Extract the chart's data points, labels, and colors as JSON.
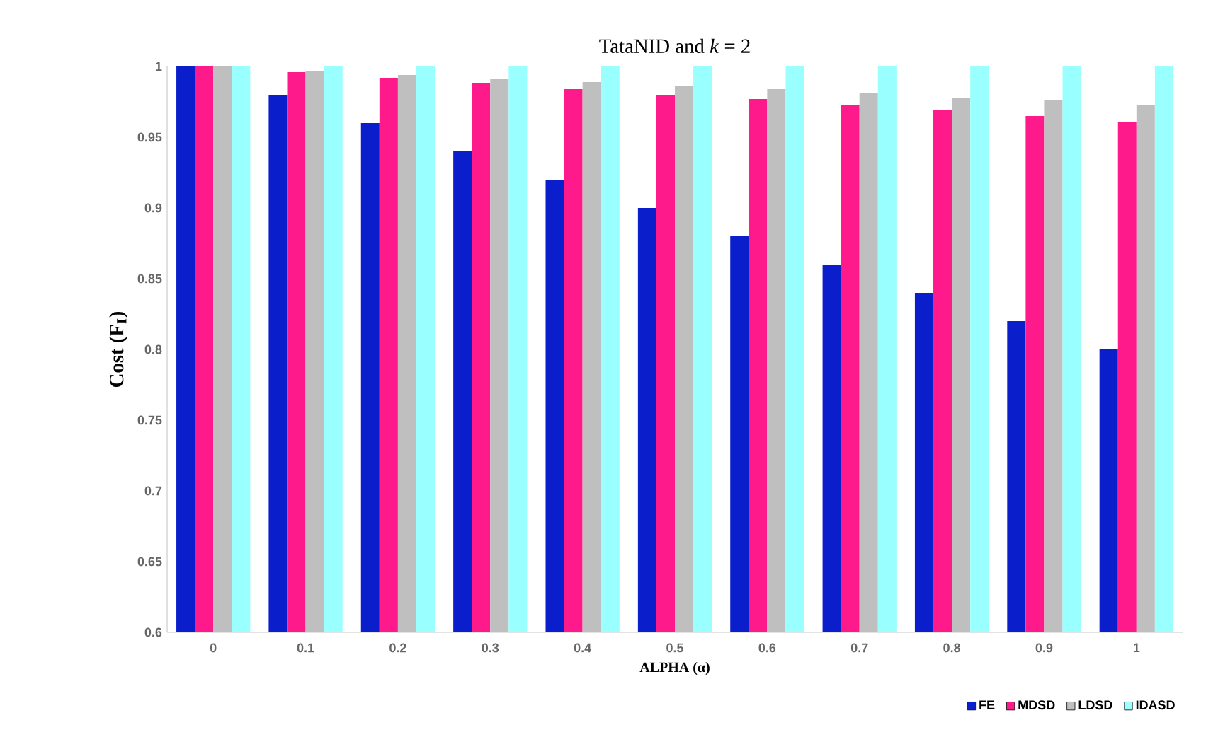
{
  "chart_data": {
    "type": "bar",
    "title": "TataNID and *k* = 2",
    "xlabel": "ALPHA (α)",
    "ylabel": "Cost (F$_{I}$)",
    "categories": [
      "0",
      "0.1",
      "0.2",
      "0.3",
      "0.4",
      "0.5",
      "0.6",
      "0.7",
      "0.8",
      "0.9",
      "1"
    ],
    "series": [
      {
        "name": "FE",
        "color": "#0a1ecc",
        "values": [
          1,
          0.98,
          0.96,
          0.94,
          0.92,
          0.9,
          0.88,
          0.86,
          0.84,
          0.82,
          0.8
        ]
      },
      {
        "name": "MDSD",
        "color": "#ff1a8c",
        "values": [
          1,
          0.996,
          0.992,
          0.988,
          0.984,
          0.98,
          0.977,
          0.973,
          0.969,
          0.965,
          0.961
        ]
      },
      {
        "name": "LDSD",
        "color": "#bfbfbf",
        "values": [
          1,
          0.997,
          0.994,
          0.991,
          0.989,
          0.986,
          0.984,
          0.981,
          0.978,
          0.976,
          0.973
        ]
      },
      {
        "name": "IDASD",
        "color": "#99ffff",
        "values": [
          1,
          1,
          1,
          1,
          1,
          1,
          1,
          1,
          1,
          1,
          1
        ]
      }
    ],
    "ylim": [
      0.6,
      1
    ],
    "yticks": [
      0.6,
      0.65,
      0.7,
      0.75,
      0.8,
      0.85,
      0.9,
      0.95,
      1
    ],
    "grid": false,
    "legend": "bottom right"
  }
}
